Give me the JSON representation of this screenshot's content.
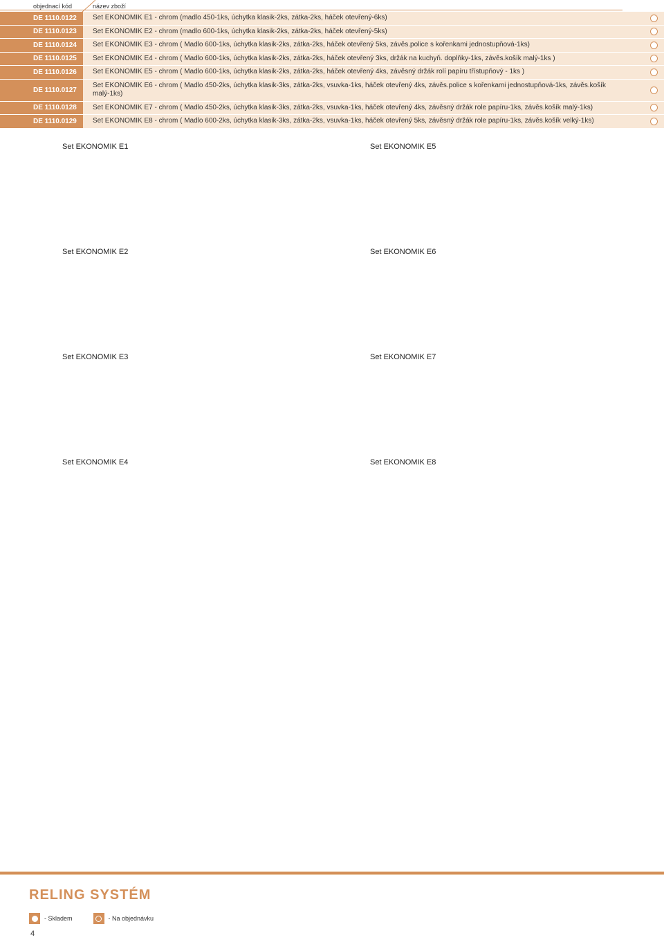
{
  "header": {
    "col_code": "objednací kód",
    "col_name": "název zboží"
  },
  "rows": [
    {
      "code": "DE 1110.0122",
      "desc": "Set EKONOMIK E1 - chrom (madlo 450-1ks, úchytka klasik-2ks, zátka-2ks, háček otevřený-6ks)",
      "status": "order"
    },
    {
      "code": "DE 1110.0123",
      "desc": "Set EKONOMIK E2 - chrom (madlo 600-1ks, úchytka klasik-2ks, zátka-2ks, háček otevřený-5ks)",
      "status": "order"
    },
    {
      "code": "DE 1110.0124",
      "desc": "Set EKONOMIK E3 - chrom ( Madlo 600-1ks, úchytka klasik-2ks, zátka-2ks, háček otevřený 5ks, závěs.police s kořenkami jednostupňová-1ks)",
      "status": "order"
    },
    {
      "code": "DE 1110.0125",
      "desc": "Set EKONOMIK E4 - chrom ( Madlo 600-1ks, úchytka klasik-2ks, zátka-2ks, háček otevřený 3ks, držák na kuchyň. doplňky-1ks, závěs.košík malý-1ks )",
      "status": "order"
    },
    {
      "code": "DE 1110.0126",
      "desc": "Set EKONOMIK E5 - chrom ( Madlo 600-1ks, úchytka klasik-2ks, zátka-2ks, háček otevřený 4ks, závěsný držák rolí papíru třístupňový - 1ks )",
      "status": "order"
    },
    {
      "code": "DE 1110.0127",
      "desc": "Set EKONOMIK E6 - chrom ( Madlo 450-2ks, úchytka klasik-3ks, zátka-2ks, vsuvka-1ks, háček otevřený 4ks, závěs.police s kořenkami jednostupňová-1ks, závěs.košík malý-1ks)",
      "status": "order"
    },
    {
      "code": "DE 1110.0128",
      "desc": "Set EKONOMIK E7 - chrom ( Madlo 450-2ks, úchytka klasik-3ks, zátka-2ks, vsuvka-1ks, háček otevřený 4ks, závěsný držák role papíru-1ks, závěs.košík malý-1ks)",
      "status": "order"
    },
    {
      "code": "DE 1110.0129",
      "desc": "Set EKONOMIK E8 - chrom ( Madlo 600-2ks, úchytka klasik-3ks, zátka-2ks, vsuvka-1ks, háček otevřený 5ks, závěsný držák role papíru-1ks, závěs.košík velký-1ks)",
      "status": "order"
    }
  ],
  "gallery": [
    "Set EKONOMIK E1",
    "Set EKONOMIK E5",
    "Set EKONOMIK E2",
    "Set EKONOMIK E6",
    "Set EKONOMIK E3",
    "Set EKONOMIK E7",
    "Set EKONOMIK E4",
    "Set EKONOMIK E8"
  ],
  "footer": {
    "title": "RELING SYSTÉM",
    "legend_stock": "- Skladem",
    "legend_order": "- Na objednávku",
    "page": "4"
  },
  "colors": {
    "accent": "#d4905a",
    "row_bg": "#f8e7d6",
    "text": "#333333"
  }
}
